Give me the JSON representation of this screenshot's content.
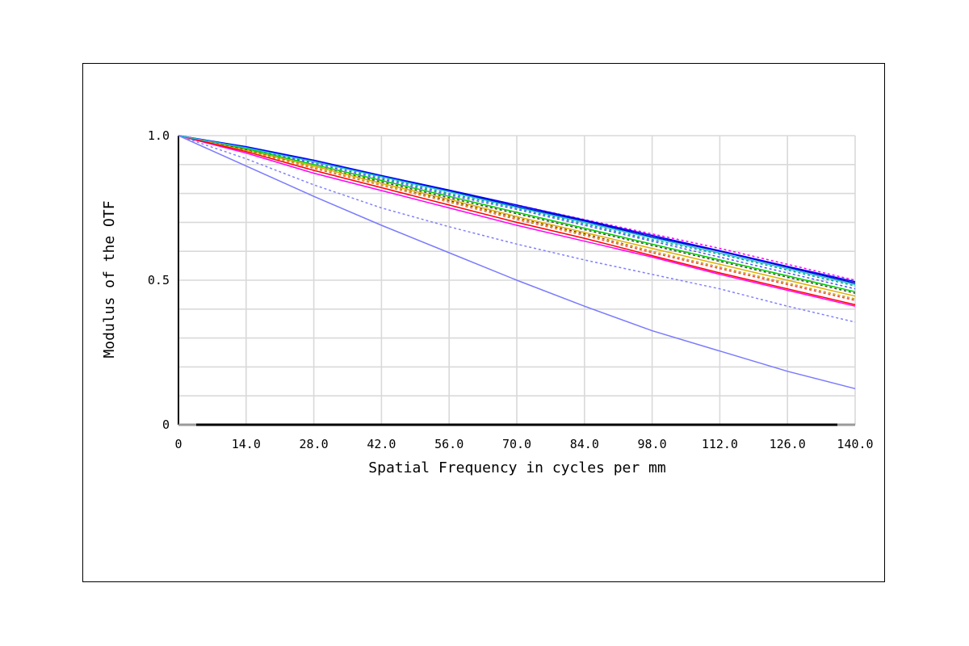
{
  "chart_data": {
    "type": "line",
    "title": "",
    "xlabel": "Spatial Frequency in cycles per mm",
    "ylabel": "Modulus of the OTF",
    "xlim": [
      0,
      140
    ],
    "ylim": [
      0,
      1.0
    ],
    "x_ticks": [
      "0",
      "14.0",
      "28.0",
      "42.0",
      "56.0",
      "70.0",
      "84.0",
      "98.0",
      "112.0",
      "126.0",
      "140.0"
    ],
    "y_ticks": [
      {
        "value": 0,
        "label": "0"
      },
      {
        "value": 0.5,
        "label": "0.5"
      },
      {
        "value": 1.0,
        "label": "1.0"
      }
    ],
    "grid": true,
    "legend": "none",
    "x": [
      0,
      14,
      28,
      42,
      56,
      70,
      84,
      98,
      112,
      126,
      140
    ],
    "series": [
      {
        "color": "#ff00ff",
        "dash": "dotted",
        "values": [
          1.0,
          0.96,
          0.91,
          0.86,
          0.81,
          0.76,
          0.71,
          0.66,
          0.61,
          0.555,
          0.5
        ]
      },
      {
        "color": "#0000c8",
        "dash": "solid",
        "values": [
          1.0,
          0.96,
          0.91,
          0.86,
          0.81,
          0.755,
          0.705,
          0.65,
          0.6,
          0.545,
          0.49
        ]
      },
      {
        "color": "#00a0a0",
        "dash": "dotted",
        "values": [
          1.0,
          0.955,
          0.91,
          0.855,
          0.8,
          0.75,
          0.695,
          0.64,
          0.59,
          0.535,
          0.48
        ]
      },
      {
        "color": "#5050ff",
        "dash": "dotted",
        "values": [
          1.0,
          0.955,
          0.905,
          0.85,
          0.795,
          0.745,
          0.69,
          0.635,
          0.58,
          0.525,
          0.47
        ]
      },
      {
        "color": "#00d000",
        "dash": "solid",
        "values": [
          1.0,
          0.955,
          0.9,
          0.845,
          0.79,
          0.735,
          0.68,
          0.625,
          0.57,
          0.515,
          0.46
        ]
      },
      {
        "color": "#404040",
        "dash": "dotted",
        "values": [
          1.0,
          0.95,
          0.895,
          0.84,
          0.785,
          0.73,
          0.675,
          0.62,
          0.565,
          0.51,
          0.455
        ]
      },
      {
        "color": "#e0b000",
        "dash": "solid",
        "values": [
          1.0,
          0.95,
          0.895,
          0.835,
          0.78,
          0.72,
          0.665,
          0.61,
          0.555,
          0.5,
          0.445
        ]
      },
      {
        "color": "#7a0000",
        "dash": "dotted",
        "values": [
          1.0,
          0.95,
          0.89,
          0.83,
          0.775,
          0.715,
          0.66,
          0.6,
          0.545,
          0.49,
          0.435
        ]
      },
      {
        "color": "#ff4040",
        "dash": "dotted",
        "values": [
          1.0,
          0.948,
          0.887,
          0.828,
          0.77,
          0.71,
          0.655,
          0.595,
          0.54,
          0.485,
          0.43
        ]
      },
      {
        "color": "#d0b020",
        "dash": "dotted",
        "values": [
          1.0,
          0.948,
          0.89,
          0.83,
          0.772,
          0.713,
          0.657,
          0.6,
          0.545,
          0.49,
          0.435
        ]
      },
      {
        "color": "#ff00ff",
        "dash": "solid",
        "values": [
          1.0,
          0.94,
          0.87,
          0.81,
          0.75,
          0.69,
          0.635,
          0.58,
          0.52,
          0.465,
          0.41
        ]
      },
      {
        "color": "#ff0000",
        "dash": "solid",
        "values": [
          1.0,
          0.945,
          0.88,
          0.82,
          0.76,
          0.7,
          0.645,
          0.585,
          0.525,
          0.47,
          0.415
        ]
      },
      {
        "color": "#0000ff",
        "dash": "solid",
        "values": [
          1.0,
          0.962,
          0.915,
          0.862,
          0.812,
          0.76,
          0.708,
          0.655,
          0.602,
          0.548,
          0.495
        ]
      },
      {
        "color": "#20c0c0",
        "dash": "solid",
        "values": [
          1.0,
          0.958,
          0.91,
          0.858,
          0.806,
          0.752,
          0.7,
          0.646,
          0.594,
          0.54,
          0.485
        ]
      },
      {
        "color": "#8080ff",
        "dash": "dotted",
        "values": [
          1.0,
          0.92,
          0.83,
          0.75,
          0.685,
          0.625,
          0.57,
          0.52,
          0.47,
          0.41,
          0.355
        ]
      },
      {
        "color": "#7a7aff",
        "dash": "solid",
        "values": [
          1.0,
          0.895,
          0.79,
          0.69,
          0.595,
          0.5,
          0.41,
          0.325,
          0.255,
          0.185,
          0.125
        ]
      }
    ]
  }
}
